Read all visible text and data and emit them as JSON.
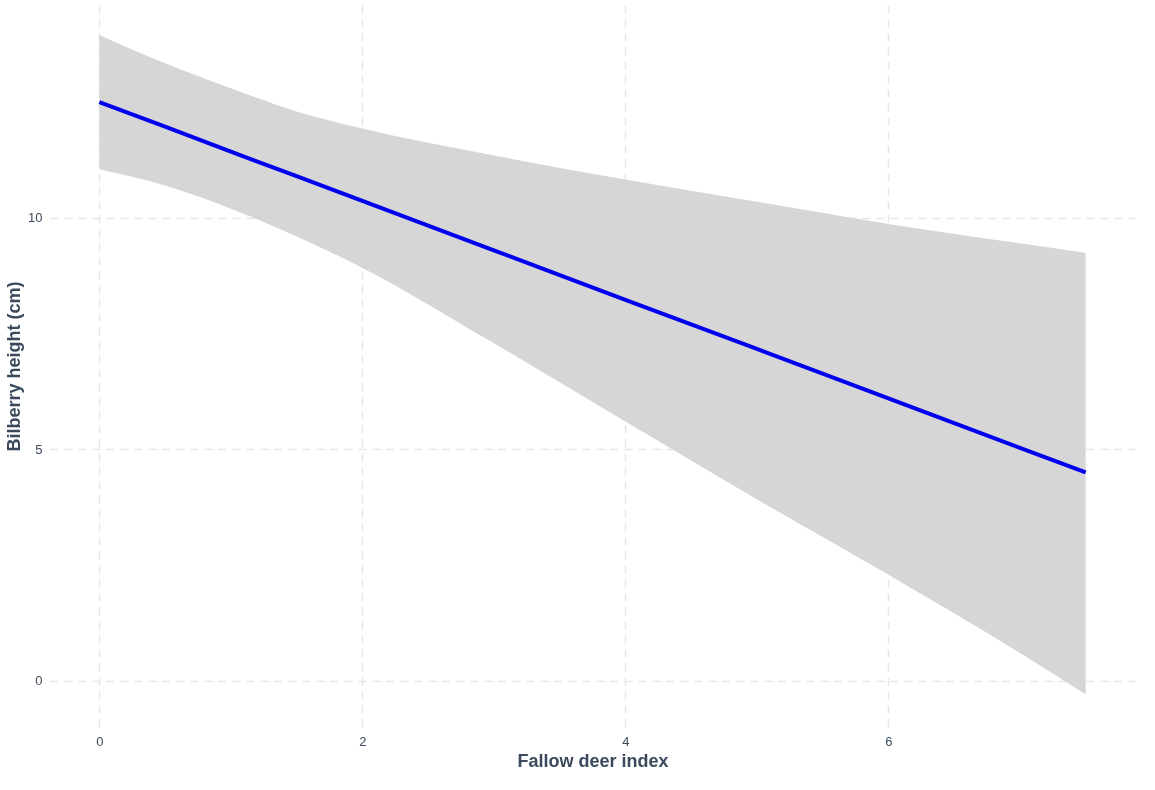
{
  "chart_data": {
    "type": "line",
    "xlabel": "Fallow deer index",
    "ylabel": "Bilberry height (cm)",
    "x": [
      0,
      0.5,
      1,
      1.5,
      2,
      3,
      4,
      5,
      6,
      7,
      7.5
    ],
    "series": [
      {
        "color": "#0000ee",
        "values": [
          12.5,
          11.97,
          11.43,
          10.9,
          10.37,
          9.3,
          8.23,
          7.17,
          6.1,
          5.03,
          4.5
        ],
        "lower": [
          11.05,
          10.7,
          10.2,
          9.6,
          8.92,
          7.29,
          5.6,
          3.92,
          2.29,
          0.6,
          -0.29
        ],
        "upper": [
          13.95,
          13.34,
          12.8,
          12.3,
          11.93,
          11.35,
          10.83,
          10.35,
          9.87,
          9.45,
          9.24
        ]
      }
    ],
    "xlim": [
      -0.375,
      7.875
    ],
    "ylim": [
      -1,
      14.6
    ],
    "xticks": [
      0,
      2,
      4,
      6
    ],
    "yticks": [
      0,
      5,
      10
    ],
    "grid": true,
    "line_style": "solid",
    "marker": "none"
  }
}
